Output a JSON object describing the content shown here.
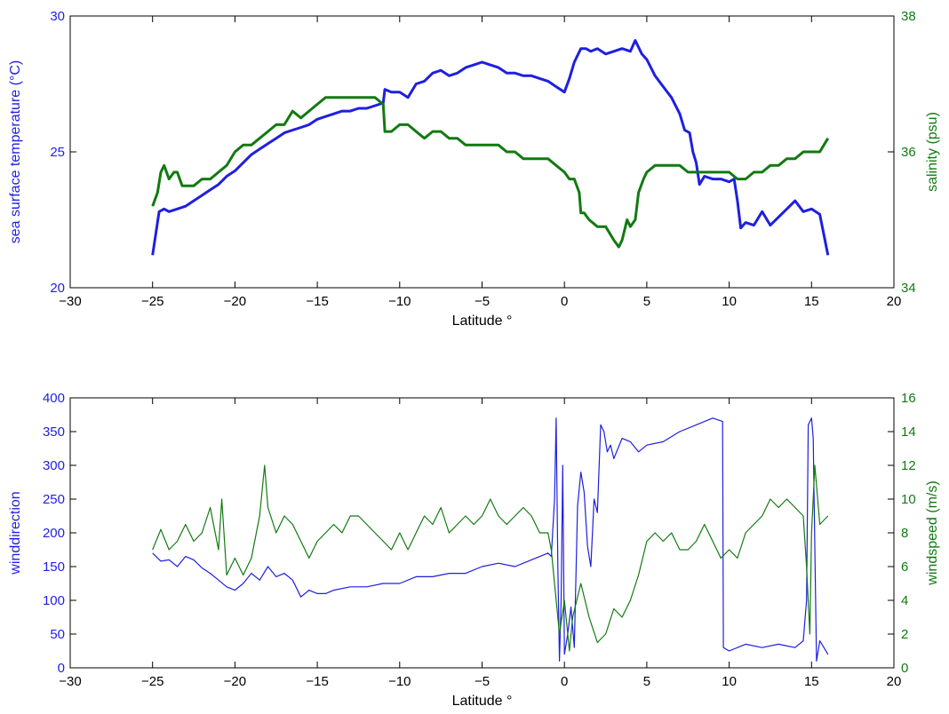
{
  "chart_data": [
    {
      "type": "line",
      "xlabel": "Latitude °",
      "ylabel": "sea surface temperature (°C)",
      "y2label": "salinity (psu)",
      "xlim": [
        -30,
        20
      ],
      "ylim": [
        20,
        30
      ],
      "y2lim": [
        34,
        38
      ],
      "xticks": [
        -30,
        -25,
        -20,
        -15,
        -10,
        -5,
        0,
        5,
        10,
        15,
        20
      ],
      "yticks": [
        20,
        25,
        30
      ],
      "y2ticks": [
        34,
        36,
        38
      ],
      "grid": false,
      "colors": {
        "left": "#1f1fe0",
        "right": "#117a11"
      },
      "series": [
        {
          "axis": "left",
          "x": [
            -25.0,
            -24.8,
            -24.6,
            -24.3,
            -24.0,
            -23.5,
            -23.0,
            -22.5,
            -22.0,
            -21.5,
            -21.0,
            -20.5,
            -20.0,
            -19.5,
            -19.0,
            -18.5,
            -18.0,
            -17.5,
            -17.0,
            -16.5,
            -16.0,
            -15.5,
            -15.0,
            -14.5,
            -14.0,
            -13.5,
            -13.0,
            -12.5,
            -12.0,
            -11.5,
            -11.0,
            -10.9,
            -10.5,
            -10.0,
            -9.5,
            -9.0,
            -8.5,
            -8.0,
            -7.5,
            -7.0,
            -6.5,
            -6.0,
            -5.5,
            -5.0,
            -4.5,
            -4.0,
            -3.5,
            -3.0,
            -2.5,
            -2.0,
            -1.5,
            -1.0,
            -0.5,
            0.0,
            0.3,
            0.6,
            1.0,
            1.3,
            1.6,
            2.0,
            2.5,
            3.0,
            3.5,
            4.0,
            4.3,
            4.7,
            5.0,
            5.5,
            6.0,
            6.5,
            7.0,
            7.3,
            7.6,
            7.8,
            8.0,
            8.2,
            8.5,
            9.0,
            9.5,
            10.0,
            10.3,
            10.5,
            10.7,
            11.0,
            11.5,
            12.0,
            12.5,
            13.0,
            13.5,
            14.0,
            14.5,
            15.0,
            15.5,
            15.8,
            16.0
          ],
          "values": [
            21.2,
            22.0,
            22.8,
            22.9,
            22.8,
            22.9,
            23.0,
            23.2,
            23.4,
            23.6,
            23.8,
            24.1,
            24.3,
            24.6,
            24.9,
            25.1,
            25.3,
            25.5,
            25.7,
            25.8,
            25.9,
            26.0,
            26.2,
            26.3,
            26.4,
            26.5,
            26.5,
            26.6,
            26.6,
            26.7,
            26.8,
            27.3,
            27.2,
            27.2,
            27.0,
            27.5,
            27.6,
            27.9,
            28.0,
            27.8,
            27.9,
            28.1,
            28.2,
            28.3,
            28.2,
            28.1,
            27.9,
            27.9,
            27.8,
            27.8,
            27.7,
            27.6,
            27.4,
            27.2,
            27.7,
            28.3,
            28.8,
            28.8,
            28.7,
            28.8,
            28.6,
            28.7,
            28.8,
            28.7,
            29.1,
            28.6,
            28.4,
            27.8,
            27.4,
            27.0,
            26.4,
            25.8,
            25.7,
            25.0,
            24.6,
            23.8,
            24.1,
            24.0,
            24.0,
            23.9,
            24.0,
            23.2,
            22.2,
            22.4,
            22.3,
            22.8,
            22.3,
            22.6,
            22.9,
            23.2,
            22.8,
            22.9,
            22.7,
            21.8,
            21.2
          ]
        },
        {
          "axis": "right",
          "x": [
            -25.0,
            -24.7,
            -24.5,
            -24.3,
            -24.0,
            -23.7,
            -23.5,
            -23.2,
            -23.0,
            -22.5,
            -22.0,
            -21.5,
            -21.0,
            -20.5,
            -20.0,
            -19.5,
            -19.0,
            -18.5,
            -18.0,
            -17.5,
            -17.0,
            -16.5,
            -16.0,
            -15.5,
            -15.0,
            -14.5,
            -14.0,
            -13.5,
            -13.0,
            -12.5,
            -12.0,
            -11.5,
            -11.0,
            -10.9,
            -10.5,
            -10.0,
            -9.5,
            -9.0,
            -8.5,
            -8.0,
            -7.5,
            -7.0,
            -6.5,
            -6.0,
            -5.5,
            -5.0,
            -4.5,
            -4.0,
            -3.5,
            -3.0,
            -2.5,
            -2.0,
            -1.5,
            -1.0,
            -0.5,
            0.0,
            0.3,
            0.6,
            0.9,
            1.0,
            1.2,
            1.5,
            2.0,
            2.5,
            3.0,
            3.3,
            3.5,
            3.8,
            4.0,
            4.3,
            4.5,
            4.8,
            5.0,
            5.5,
            6.0,
            6.5,
            7.0,
            7.5,
            8.0,
            8.5,
            9.0,
            9.5,
            10.0,
            10.5,
            11.0,
            11.5,
            12.0,
            12.5,
            13.0,
            13.5,
            14.0,
            14.5,
            15.0,
            15.5,
            16.0
          ],
          "values": [
            35.2,
            35.4,
            35.7,
            35.8,
            35.6,
            35.7,
            35.7,
            35.5,
            35.5,
            35.5,
            35.6,
            35.6,
            35.7,
            35.8,
            36.0,
            36.1,
            36.1,
            36.2,
            36.3,
            36.4,
            36.4,
            36.6,
            36.5,
            36.6,
            36.7,
            36.8,
            36.8,
            36.8,
            36.8,
            36.8,
            36.8,
            36.8,
            36.7,
            36.3,
            36.3,
            36.4,
            36.4,
            36.3,
            36.2,
            36.3,
            36.3,
            36.2,
            36.2,
            36.1,
            36.1,
            36.1,
            36.1,
            36.1,
            36.0,
            36.0,
            35.9,
            35.9,
            35.9,
            35.9,
            35.8,
            35.7,
            35.6,
            35.6,
            35.4,
            35.1,
            35.1,
            35.0,
            34.9,
            34.9,
            34.7,
            34.6,
            34.7,
            35.0,
            34.9,
            35.0,
            35.4,
            35.6,
            35.7,
            35.8,
            35.8,
            35.8,
            35.8,
            35.7,
            35.7,
            35.7,
            35.7,
            35.7,
            35.7,
            35.6,
            35.6,
            35.7,
            35.7,
            35.8,
            35.8,
            35.9,
            35.9,
            36.0,
            36.0,
            36.0,
            36.2
          ]
        }
      ]
    },
    {
      "type": "line",
      "xlabel": "Latitude °",
      "ylabel": "winddirection",
      "y2label": "windspeed (m/s)",
      "xlim": [
        -30,
        20
      ],
      "ylim": [
        0,
        400
      ],
      "y2lim": [
        0,
        16
      ],
      "xticks": [
        -30,
        -25,
        -20,
        -15,
        -10,
        -5,
        0,
        5,
        10,
        15,
        20
      ],
      "yticks": [
        0,
        50,
        100,
        150,
        200,
        250,
        300,
        350,
        400
      ],
      "y2ticks": [
        0,
        2,
        4,
        6,
        8,
        10,
        12,
        14,
        16
      ],
      "grid": false,
      "colors": {
        "left": "#1f1fe0",
        "right": "#117a11"
      },
      "series": [
        {
          "axis": "left",
          "x": [
            -25.0,
            -24.5,
            -24.0,
            -23.5,
            -23.0,
            -22.5,
            -22.0,
            -21.5,
            -21.0,
            -20.5,
            -20.0,
            -19.5,
            -19.0,
            -18.5,
            -18.0,
            -17.5,
            -17.0,
            -16.5,
            -16.0,
            -15.5,
            -15.0,
            -14.5,
            -14.0,
            -13.0,
            -12.0,
            -11.0,
            -10.0,
            -9.0,
            -8.0,
            -7.0,
            -6.0,
            -5.0,
            -4.0,
            -3.0,
            -2.0,
            -1.0,
            -0.8,
            -0.6,
            -0.5,
            -0.4,
            -0.3,
            -0.2,
            -0.1,
            0.0,
            0.2,
            0.4,
            0.6,
            0.8,
            1.0,
            1.2,
            1.4,
            1.6,
            1.8,
            2.0,
            2.2,
            2.4,
            2.6,
            2.8,
            3.0,
            3.5,
            4.0,
            4.5,
            5.0,
            6.0,
            7.0,
            8.0,
            9.0,
            9.6,
            9.65,
            10.0,
            11.0,
            12.0,
            13.0,
            14.0,
            14.5,
            14.7,
            14.8,
            15.0,
            15.1,
            15.3,
            15.5,
            16.0
          ],
          "values": [
            170,
            158,
            160,
            150,
            165,
            160,
            148,
            140,
            130,
            120,
            115,
            125,
            140,
            130,
            150,
            135,
            140,
            130,
            105,
            115,
            110,
            110,
            115,
            120,
            120,
            125,
            125,
            135,
            135,
            140,
            140,
            150,
            155,
            150,
            160,
            170,
            165,
            250,
            370,
            150,
            10,
            100,
            300,
            20,
            50,
            90,
            30,
            240,
            290,
            260,
            180,
            150,
            250,
            230,
            360,
            350,
            320,
            330,
            310,
            340,
            335,
            320,
            330,
            335,
            350,
            360,
            370,
            365,
            30,
            25,
            35,
            30,
            35,
            30,
            40,
            100,
            360,
            370,
            340,
            10,
            40,
            20
          ]
        },
        {
          "axis": "right",
          "x": [
            -25.0,
            -24.5,
            -24.0,
            -23.5,
            -23.0,
            -22.5,
            -22.0,
            -21.5,
            -21.0,
            -20.8,
            -20.5,
            -20.0,
            -19.5,
            -19.0,
            -18.5,
            -18.2,
            -18.0,
            -17.5,
            -17.0,
            -16.5,
            -16.0,
            -15.5,
            -15.0,
            -14.5,
            -14.0,
            -13.5,
            -13.0,
            -12.5,
            -12.0,
            -11.5,
            -11.0,
            -10.5,
            -10.0,
            -9.5,
            -9.0,
            -8.5,
            -8.0,
            -7.5,
            -7.0,
            -6.5,
            -6.0,
            -5.5,
            -5.0,
            -4.5,
            -4.0,
            -3.5,
            -3.0,
            -2.5,
            -2.0,
            -1.5,
            -1.0,
            -0.8,
            -0.5,
            -0.3,
            0.0,
            0.3,
            0.5,
            1.0,
            1.5,
            2.0,
            2.5,
            3.0,
            3.5,
            4.0,
            4.5,
            5.0,
            5.5,
            6.0,
            6.5,
            7.0,
            7.5,
            8.0,
            8.5,
            9.0,
            9.5,
            10.0,
            10.5,
            11.0,
            11.5,
            12.0,
            12.5,
            13.0,
            13.5,
            14.0,
            14.5,
            14.7,
            14.9,
            15.0,
            15.2,
            15.5,
            16.0
          ],
          "values": [
            7.0,
            8.2,
            7.0,
            7.5,
            8.5,
            7.5,
            8.0,
            9.5,
            7.0,
            10.0,
            5.5,
            6.5,
            5.5,
            6.5,
            9.0,
            12.0,
            9.5,
            8.0,
            9.0,
            8.5,
            7.5,
            6.5,
            7.5,
            8.0,
            8.5,
            8.0,
            9.0,
            9.0,
            8.5,
            8.0,
            7.5,
            7.0,
            8.0,
            7.0,
            8.0,
            9.0,
            8.5,
            9.5,
            8.0,
            8.5,
            9.0,
            8.5,
            9.0,
            10.0,
            9.0,
            8.5,
            9.0,
            9.5,
            9.0,
            8.0,
            8.0,
            7.0,
            4.0,
            2.0,
            4.0,
            1.0,
            3.0,
            5.0,
            3.0,
            1.5,
            2.0,
            3.5,
            3.0,
            4.0,
            5.5,
            7.5,
            8.0,
            7.5,
            8.0,
            7.0,
            7.0,
            7.5,
            8.5,
            7.5,
            6.5,
            7.0,
            6.5,
            8.0,
            8.5,
            9.0,
            10.0,
            9.5,
            10.0,
            9.5,
            9.0,
            6.0,
            2.0,
            8.0,
            12.0,
            8.5,
            9.0
          ]
        }
      ]
    }
  ]
}
